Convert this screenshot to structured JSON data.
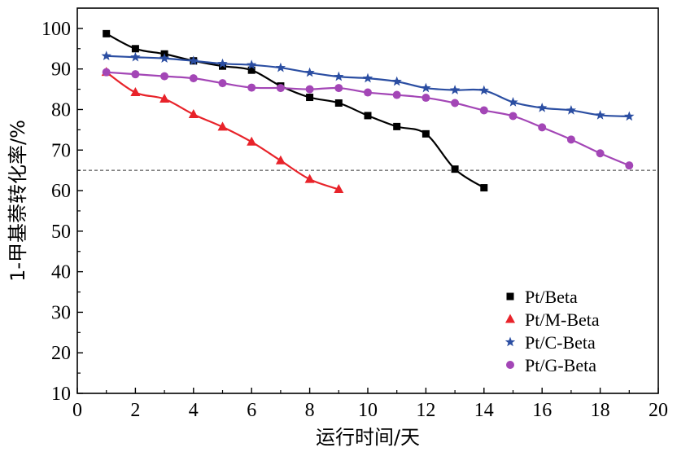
{
  "chart_data": {
    "type": "line",
    "xlabel": "运行时间/天",
    "ylabel": "1-甲基萘转化率/%",
    "xlim": [
      0,
      20
    ],
    "ylim": [
      10,
      105
    ],
    "x_ticks": [
      0,
      2,
      4,
      6,
      8,
      10,
      12,
      14,
      16,
      18,
      20
    ],
    "y_ticks": [
      10,
      20,
      30,
      40,
      50,
      60,
      70,
      80,
      90,
      100
    ],
    "reference_line": {
      "y": 65,
      "style": "dashed"
    },
    "legend_position": "bottom-right",
    "grid": false,
    "series": [
      {
        "name": "Pt/Beta",
        "color": "#000000",
        "marker": "square",
        "x": [
          1,
          2,
          3,
          4,
          5,
          6,
          7,
          8,
          9,
          10,
          11,
          12,
          13,
          14
        ],
        "y": [
          98.7,
          95.0,
          93.7,
          92.0,
          90.7,
          89.7,
          85.8,
          83.0,
          81.6,
          78.5,
          75.8,
          74.0,
          65.3,
          60.7
        ]
      },
      {
        "name": "Pt/M-Beta",
        "color": "#e8232a",
        "marker": "triangle",
        "x": [
          1,
          2,
          3,
          4,
          5,
          6,
          7,
          8,
          9
        ],
        "y": [
          89.2,
          84.2,
          82.6,
          78.8,
          75.7,
          72.0,
          67.4,
          62.8,
          60.3
        ]
      },
      {
        "name": "Pt/C-Beta",
        "color": "#2b4ea2",
        "marker": "star",
        "x": [
          1,
          2,
          3,
          4,
          5,
          6,
          7,
          8,
          9,
          10,
          11,
          12,
          13,
          14,
          15,
          16,
          17,
          18,
          19
        ],
        "y": [
          93.2,
          92.9,
          92.6,
          92.0,
          91.3,
          91.0,
          90.3,
          89.1,
          88.1,
          87.7,
          86.9,
          85.3,
          84.8,
          84.7,
          81.8,
          80.4,
          79.8,
          78.6,
          78.3
        ]
      },
      {
        "name": "Pt/G-Beta",
        "color": "#a346b6",
        "marker": "circle",
        "x": [
          1,
          2,
          3,
          4,
          5,
          6,
          7,
          8,
          9,
          10,
          11,
          12,
          13,
          14,
          15,
          16,
          17,
          18,
          19
        ],
        "y": [
          89.2,
          88.7,
          88.2,
          87.7,
          86.5,
          85.4,
          85.3,
          85.0,
          85.3,
          84.2,
          83.6,
          82.9,
          81.6,
          79.8,
          78.4,
          75.6,
          72.6,
          69.2,
          66.2
        ]
      }
    ]
  }
}
